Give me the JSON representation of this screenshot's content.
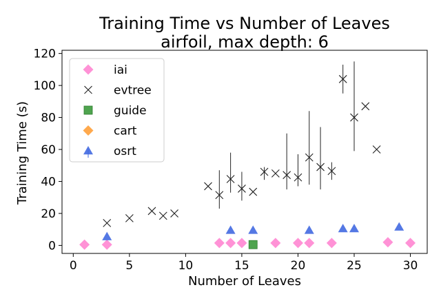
{
  "chart_data": {
    "type": "scatter",
    "title": "Training Time vs Number of Leaves",
    "subtitle": "airfoil, max depth: 6",
    "xlabel": "Number of Leaves",
    "ylabel": "Training Time (s)",
    "xlim": [
      -1,
      31.5
    ],
    "ylim": [
      -5,
      122
    ],
    "xticks": [
      0,
      5,
      10,
      15,
      20,
      25,
      30
    ],
    "yticks": [
      0,
      20,
      40,
      60,
      80,
      100,
      120
    ],
    "grid": false,
    "legend_position": "top-left",
    "series": [
      {
        "name": "iai",
        "marker": "diamond",
        "color": "#ff7fcf",
        "points": [
          {
            "x": 1,
            "y": 0.5
          },
          {
            "x": 3,
            "y": 0.5
          },
          {
            "x": 13,
            "y": 1.5
          },
          {
            "x": 14,
            "y": 1.5
          },
          {
            "x": 15,
            "y": 1.5
          },
          {
            "x": 18,
            "y": 1.5
          },
          {
            "x": 20,
            "y": 1.5
          },
          {
            "x": 21,
            "y": 1.5
          },
          {
            "x": 23,
            "y": 1.5
          },
          {
            "x": 28,
            "y": 2
          },
          {
            "x": 30,
            "y": 1.5
          }
        ]
      },
      {
        "name": "evtree",
        "marker": "x",
        "color": "#222222",
        "points": [
          {
            "x": 3,
            "y": 14
          },
          {
            "x": 5,
            "y": 17
          },
          {
            "x": 7,
            "y": 21.5
          },
          {
            "x": 8,
            "y": 18.5
          },
          {
            "x": 9,
            "y": 20
          },
          {
            "x": 12,
            "y": 37
          },
          {
            "x": 13,
            "y": 31.5,
            "ylo": 23,
            "yhi": 47
          },
          {
            "x": 14,
            "y": 41.5,
            "ylo": 33,
            "yhi": 58
          },
          {
            "x": 15,
            "y": 35.5,
            "ylo": 28,
            "yhi": 46
          },
          {
            "x": 16,
            "y": 33.5
          },
          {
            "x": 17,
            "y": 46,
            "ylo": 41,
            "yhi": 49
          },
          {
            "x": 18,
            "y": 45
          },
          {
            "x": 19,
            "y": 44,
            "ylo": 35,
            "yhi": 70
          },
          {
            "x": 20,
            "y": 42.5,
            "ylo": 37,
            "yhi": 57
          },
          {
            "x": 21,
            "y": 55,
            "ylo": 38,
            "yhi": 84
          },
          {
            "x": 22,
            "y": 49,
            "ylo": 35,
            "yhi": 74
          },
          {
            "x": 23,
            "y": 46.5,
            "ylo": 41,
            "yhi": 52
          },
          {
            "x": 24,
            "y": 104,
            "ylo": 95,
            "yhi": 113
          },
          {
            "x": 25,
            "y": 80,
            "ylo": 59,
            "yhi": 115
          },
          {
            "x": 26,
            "y": 87
          },
          {
            "x": 27,
            "y": 60
          }
        ]
      },
      {
        "name": "guide",
        "marker": "square",
        "color": "#3c9a3c",
        "points": [
          {
            "x": 16,
            "y": 0.5
          }
        ]
      },
      {
        "name": "cart",
        "marker": "diamond",
        "color": "#ff9a2e",
        "points": []
      },
      {
        "name": "osrt",
        "marker": "triangle",
        "color": "#4169e1",
        "points": [
          {
            "x": 3,
            "y": 5.5
          },
          {
            "x": 14,
            "y": 9.5
          },
          {
            "x": 16,
            "y": 9.5
          },
          {
            "x": 21,
            "y": 9.5
          },
          {
            "x": 24,
            "y": 10.5
          },
          {
            "x": 25,
            "y": 10.5
          },
          {
            "x": 29,
            "y": 11.5
          }
        ]
      }
    ]
  }
}
